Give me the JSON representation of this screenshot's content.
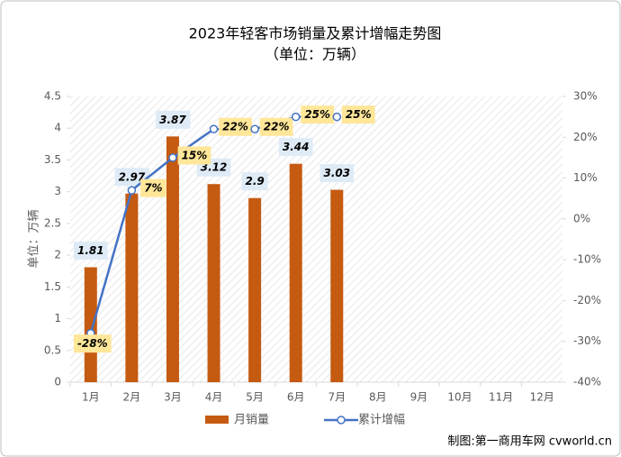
{
  "chart_data": {
    "type": "bar+line",
    "title": "2023年轻客市场销量及累计增幅走势图",
    "subtitle": "（单位：万辆）",
    "y_label": "单位：万辆",
    "source": "制图:第一商用车网 cvworld.cn",
    "categories": [
      "1月",
      "2月",
      "3月",
      "4月",
      "5月",
      "6月",
      "7月",
      "8月",
      "9月",
      "10月",
      "11月",
      "12月"
    ],
    "series": [
      {
        "name": "月销量",
        "type": "bar",
        "color": "#c55a11",
        "values": [
          1.81,
          2.97,
          3.87,
          3.12,
          2.9,
          3.44,
          3.03,
          null,
          null,
          null,
          null,
          null
        ]
      },
      {
        "name": "累计增幅",
        "type": "line",
        "axis": "y2",
        "color": "#4472c4",
        "values": [
          -28,
          7,
          15,
          22,
          22,
          25,
          25,
          null,
          null,
          null,
          null,
          null
        ],
        "value_labels": [
          "-28%",
          "7%",
          "15%",
          "22%",
          "22%",
          "25%",
          "25%",
          null,
          null,
          null,
          null,
          null
        ]
      }
    ],
    "ylim": [
      0,
      4.5
    ],
    "yticks": [
      0,
      0.5,
      1,
      1.5,
      2,
      2.5,
      3,
      3.5,
      4,
      4.5
    ],
    "y2lim": [
      -40,
      30
    ],
    "y2ticks": [
      {
        "value": -40,
        "label": "-40%"
      },
      {
        "value": -30,
        "label": "-30%"
      },
      {
        "value": -20,
        "label": "-20%"
      },
      {
        "value": -10,
        "label": "-10%"
      },
      {
        "value": 0,
        "label": "0%"
      },
      {
        "value": 10,
        "label": "10%"
      },
      {
        "value": 20,
        "label": "20%"
      },
      {
        "value": 30,
        "label": "30%"
      }
    ]
  }
}
